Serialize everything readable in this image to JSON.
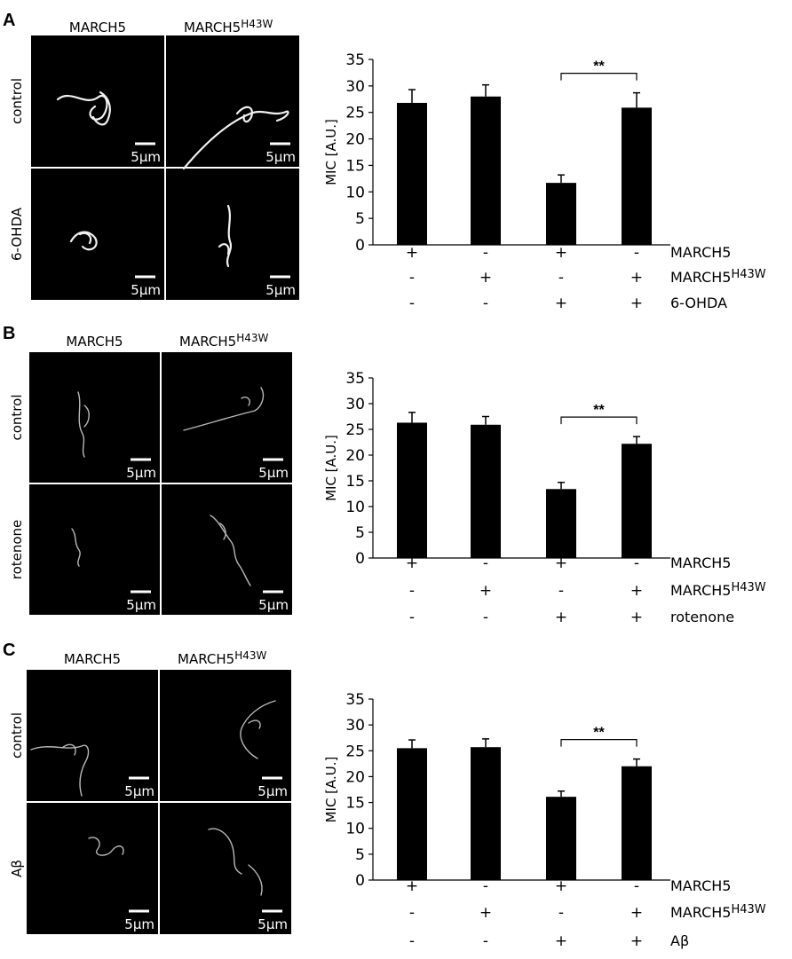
{
  "panels": [
    {
      "letter": "A",
      "col_labels": [
        "MARCH5",
        "MARCH5",
        "H43W"
      ],
      "row_labels": [
        "control",
        "6-OHDA"
      ],
      "scale_label": "5µm",
      "treatment_label": "6-OHDA",
      "significance": "**"
    },
    {
      "letter": "B",
      "col_labels": [
        "MARCH5",
        "MARCH5",
        "H43W"
      ],
      "row_labels": [
        "control",
        "rotenone"
      ],
      "scale_label": "5µm",
      "treatment_label": "rotenone",
      "significance": "**"
    },
    {
      "letter": "C",
      "col_labels": [
        "MARCH5",
        "MARCH5",
        "H43W"
      ],
      "row_labels": [
        "control",
        "Aβ"
      ],
      "scale_label": "5µm",
      "treatment_label": "Aβ",
      "significance": "**"
    }
  ],
  "row_names": {
    "march5": "MARCH5",
    "mutant_base": "MARCH5",
    "mutant_sup": "H43W"
  },
  "chart_data": [
    {
      "type": "bar",
      "categories": [
        "1",
        "2",
        "3",
        "4"
      ],
      "values": [
        26.8,
        28.0,
        11.7,
        25.9
      ],
      "errors": [
        2.5,
        2.2,
        1.5,
        2.8
      ],
      "ylabel": "MIC [A.U.]",
      "ylim": [
        0,
        35
      ],
      "yticks": [
        "0",
        "5",
        "10",
        "15",
        "20",
        "25",
        "30",
        "35"
      ],
      "conditions": {
        "MARCH5": [
          "+",
          "-",
          "+",
          "-"
        ],
        "MARCH5H43W": [
          "-",
          "+",
          "-",
          "+"
        ],
        "treatment": [
          "-",
          "-",
          "+",
          "+"
        ]
      },
      "bar_color": "#000000"
    },
    {
      "type": "bar",
      "categories": [
        "1",
        "2",
        "3",
        "4"
      ],
      "values": [
        26.3,
        25.9,
        13.4,
        22.2
      ],
      "errors": [
        2.0,
        1.6,
        1.3,
        1.4
      ],
      "ylabel": "MIC [A.U.]",
      "ylim": [
        0,
        35
      ],
      "yticks": [
        "0",
        "5",
        "10",
        "15",
        "20",
        "25",
        "30",
        "35"
      ],
      "conditions": {
        "MARCH5": [
          "+",
          "-",
          "+",
          "-"
        ],
        "MARCH5H43W": [
          "-",
          "+",
          "-",
          "+"
        ],
        "treatment": [
          "-",
          "-",
          "+",
          "+"
        ]
      },
      "bar_color": "#000000"
    },
    {
      "type": "bar",
      "categories": [
        "1",
        "2",
        "3",
        "4"
      ],
      "values": [
        25.5,
        25.7,
        16.1,
        22.0
      ],
      "errors": [
        1.6,
        1.6,
        1.1,
        1.4
      ],
      "ylabel": "MIC [A.U.]",
      "ylim": [
        0,
        35
      ],
      "yticks": [
        "0",
        "5",
        "10",
        "15",
        "20",
        "25",
        "30",
        "35"
      ],
      "conditions": {
        "MARCH5": [
          "+",
          "-",
          "+",
          "-"
        ],
        "MARCH5H43W": [
          "-",
          "+",
          "-",
          "+"
        ],
        "treatment": [
          "-",
          "-",
          "+",
          "+"
        ]
      },
      "bar_color": "#000000"
    }
  ]
}
